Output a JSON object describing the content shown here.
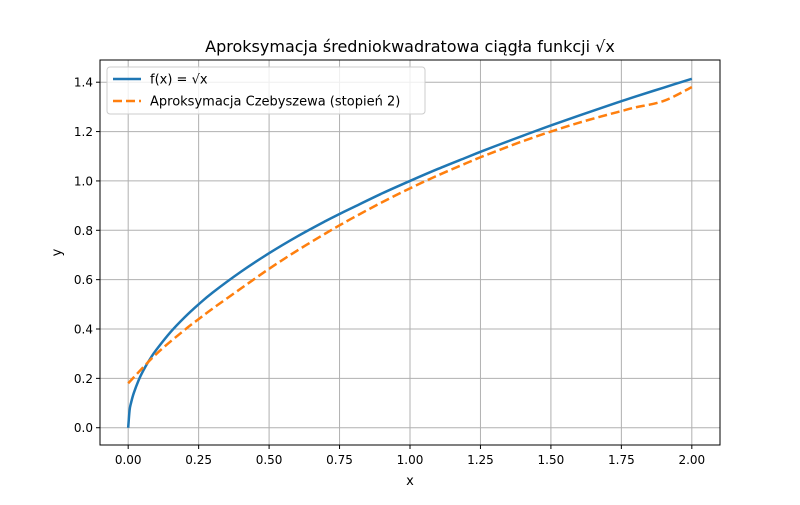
{
  "chart_data": {
    "type": "line",
    "title": "Aproksymacja średniokwadratowa ciągła funkcji √x",
    "xlabel": "x",
    "ylabel": "y",
    "xlim": [
      -0.1,
      2.1
    ],
    "ylim": [
      -0.07,
      1.49
    ],
    "x_ticks": [
      0.0,
      0.25,
      0.5,
      0.75,
      1.0,
      1.25,
      1.5,
      1.75,
      2.0
    ],
    "x_tick_labels": [
      "0.00",
      "0.25",
      "0.50",
      "0.75",
      "1.00",
      "1.25",
      "1.50",
      "1.75",
      "2.00"
    ],
    "y_ticks": [
      0.0,
      0.2,
      0.4,
      0.6,
      0.8,
      1.0,
      1.2,
      1.4
    ],
    "y_tick_labels": [
      "0.0",
      "0.2",
      "0.4",
      "0.6",
      "0.8",
      "1.0",
      "1.2",
      "1.4"
    ],
    "grid": true,
    "legend_position": "top-left",
    "series": [
      {
        "name": "f(x) = √x",
        "color": "#1f77b4",
        "style": "solid",
        "x": [
          0.0,
          0.005,
          0.01,
          0.02,
          0.04,
          0.06,
          0.08,
          0.1,
          0.15,
          0.2,
          0.25,
          0.3,
          0.4,
          0.5,
          0.6,
          0.7,
          0.75,
          0.8,
          0.9,
          1.0,
          1.1,
          1.2,
          1.25,
          1.3,
          1.4,
          1.5,
          1.6,
          1.7,
          1.75,
          1.8,
          1.9,
          2.0
        ],
        "y": [
          0.0,
          0.071,
          0.1,
          0.141,
          0.2,
          0.245,
          0.283,
          0.316,
          0.387,
          0.447,
          0.5,
          0.548,
          0.632,
          0.707,
          0.775,
          0.837,
          0.866,
          0.894,
          0.949,
          1.0,
          1.049,
          1.095,
          1.118,
          1.14,
          1.183,
          1.225,
          1.265,
          1.304,
          1.323,
          1.342,
          1.378,
          1.414
        ]
      },
      {
        "name": "Aproksymacja Czebyszewa (stopień 2)",
        "color": "#ff7f0e",
        "style": "dashed",
        "x": [
          0.0,
          0.1,
          0.2,
          0.25,
          0.3,
          0.4,
          0.5,
          0.6,
          0.7,
          0.75,
          0.8,
          0.9,
          1.0,
          1.1,
          1.2,
          1.25,
          1.3,
          1.4,
          1.5,
          1.6,
          1.7,
          1.75,
          1.8,
          1.9,
          2.0
        ],
        "y": [
          0.18,
          0.299,
          0.396,
          0.44,
          0.483,
          0.564,
          0.644,
          0.718,
          0.787,
          0.82,
          0.852,
          0.913,
          0.97,
          1.023,
          1.072,
          1.096,
          1.118,
          1.161,
          1.2,
          1.236,
          1.268,
          1.283,
          1.298,
          1.324,
          1.38
        ]
      }
    ]
  }
}
